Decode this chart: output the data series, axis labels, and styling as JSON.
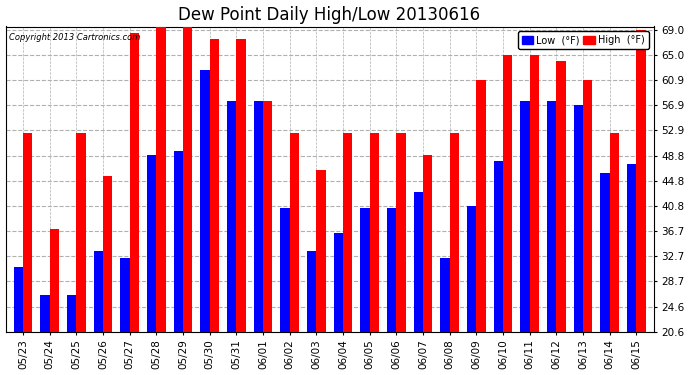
{
  "title": "Dew Point Daily High/Low 20130616",
  "copyright": "Copyright 2013 Cartronics.com",
  "dates": [
    "05/23",
    "05/24",
    "05/25",
    "05/26",
    "05/27",
    "05/28",
    "05/29",
    "05/30",
    "05/31",
    "06/01",
    "06/02",
    "06/03",
    "06/04",
    "06/05",
    "06/06",
    "06/07",
    "06/08",
    "06/09",
    "06/10",
    "06/11",
    "06/12",
    "06/13",
    "06/14",
    "06/15"
  ],
  "low_values": [
    31.0,
    26.5,
    26.5,
    33.5,
    32.5,
    49.0,
    49.5,
    62.5,
    57.5,
    57.5,
    40.5,
    33.5,
    36.5,
    40.5,
    40.5,
    43.0,
    32.5,
    40.8,
    48.0,
    57.5,
    57.5,
    57.0,
    46.0,
    47.5
  ],
  "high_values": [
    52.5,
    37.0,
    52.5,
    45.5,
    68.5,
    69.5,
    69.5,
    67.5,
    67.5,
    57.5,
    52.5,
    46.5,
    52.5,
    52.5,
    52.5,
    49.0,
    52.5,
    60.9,
    65.0,
    65.0,
    64.0,
    60.9,
    52.5,
    69.0
  ],
  "bar_color_low": "#0000ff",
  "bar_color_high": "#ff0000",
  "bg_color": "#ffffff",
  "plot_bg_color": "#ffffff",
  "grid_color": "#b0b0b0",
  "ylim_min": 20.6,
  "ylim_max": 69.5,
  "yticks": [
    20.6,
    24.6,
    28.7,
    32.7,
    36.7,
    40.8,
    44.8,
    48.8,
    52.9,
    56.9,
    60.9,
    65.0,
    69.0
  ],
  "legend_low_label": "Low  (°F)",
  "legend_high_label": "High  (°F)",
  "title_fontsize": 12,
  "tick_fontsize": 7.5,
  "bar_width": 0.35
}
